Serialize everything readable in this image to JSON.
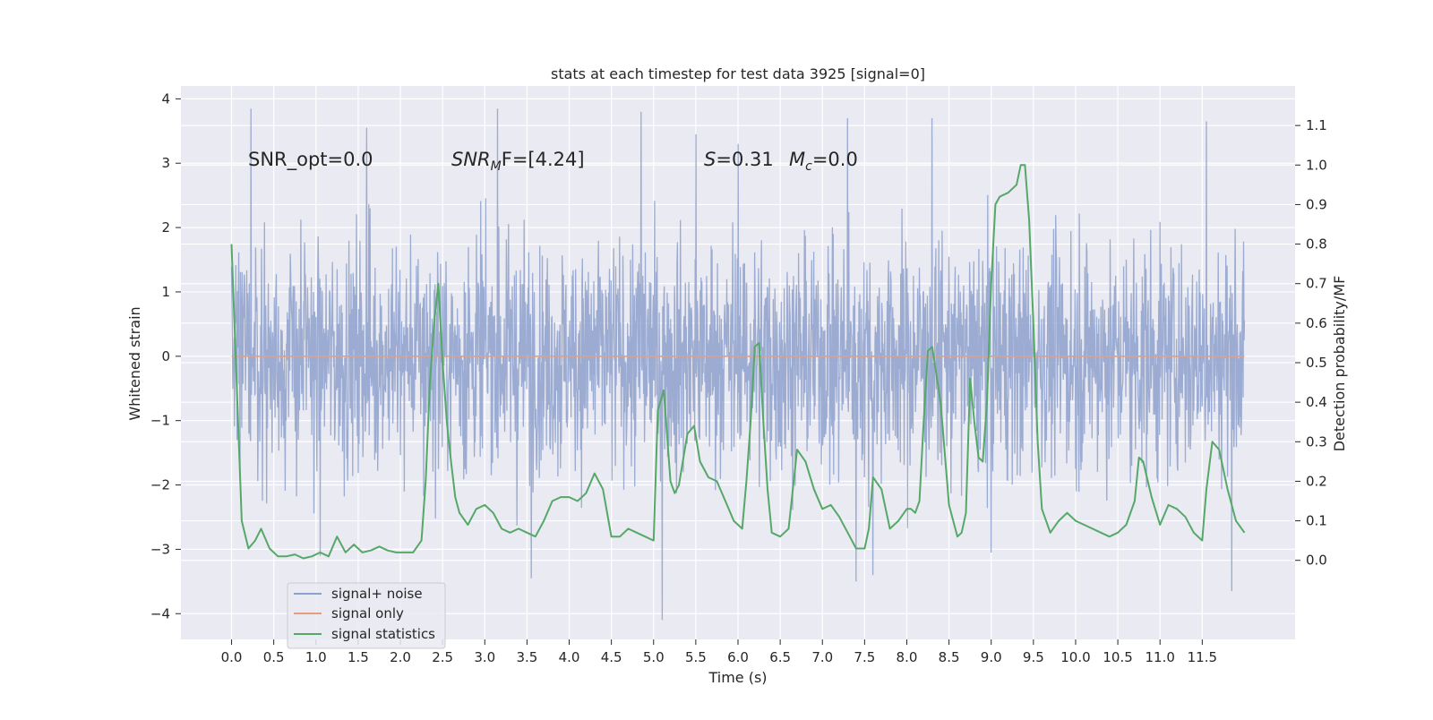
{
  "chart_data": {
    "type": "line",
    "title": "stats at each timestep for test data 3925 [signal=0]",
    "xlabel": "Time (s)",
    "ylabel": "Whitened strain",
    "y2label": "Detection probability/MF",
    "xlim": [
      -0.6,
      12.6
    ],
    "ylim": [
      -4.4,
      4.2
    ],
    "y2lim": [
      -0.2,
      1.2
    ],
    "grid": true,
    "legend_position": "lower-left",
    "x_ticks": [
      "0.0",
      "0.5",
      "1.0",
      "1.5",
      "2.0",
      "2.5",
      "3.0",
      "3.5",
      "4.0",
      "4.5",
      "5.0",
      "5.5",
      "6.0",
      "6.5",
      "7.0",
      "7.5",
      "8.0",
      "8.5",
      "9.0",
      "9.5",
      "10.0",
      "10.5",
      "11.0",
      "11.5"
    ],
    "y_ticks": [
      "4",
      "3",
      "2",
      "1",
      "0",
      "−1",
      "−2",
      "−3",
      "−4"
    ],
    "y2_ticks": [
      "1.1",
      "1.0",
      "0.9",
      "0.8",
      "0.7",
      "0.6",
      "0.5",
      "0.4",
      "0.3",
      "0.2",
      "0.1",
      "0.0"
    ],
    "annotations": {
      "snr_opt": "SNR_opt=0.0",
      "snr_mf_base": "SNR",
      "snr_mf_sub": "M",
      "snr_mf_rest": "F=[4.24]",
      "s_stat_base": "S",
      "s_stat_rest": "=0.31",
      "mc_base": "M",
      "mc_sub": "c",
      "mc_rest": "=0.0"
    },
    "series": [
      {
        "name": "signal+ noise",
        "color": "#8da0cb",
        "kind": "noise",
        "x_range": [
          0,
          12
        ],
        "approx_envelope": [
          -2.5,
          2.5
        ],
        "notable_peaks": [
          [
            0.23,
            3.85
          ],
          [
            1.05,
            -3.1
          ],
          [
            1.6,
            3.55
          ],
          [
            3.15,
            3.85
          ],
          [
            3.55,
            -3.45
          ],
          [
            4.85,
            3.8
          ],
          [
            5.1,
            -4.1
          ],
          [
            5.5,
            3.45
          ],
          [
            6.0,
            3.3
          ],
          [
            7.3,
            3.7
          ],
          [
            7.4,
            -3.5
          ],
          [
            7.6,
            -3.4
          ],
          [
            8.3,
            3.7
          ],
          [
            9.0,
            -3.05
          ],
          [
            11.55,
            3.65
          ],
          [
            11.85,
            -3.65
          ]
        ]
      },
      {
        "name": "signal only",
        "color": "#e89e7e",
        "axis": "left",
        "x": [
          0,
          12
        ],
        "y": [
          0,
          0
        ]
      },
      {
        "name": "signal statistics",
        "color": "#55a868",
        "axis": "right",
        "x": [
          0.0,
          0.12,
          0.2,
          0.28,
          0.35,
          0.45,
          0.55,
          0.65,
          0.75,
          0.85,
          0.95,
          1.05,
          1.15,
          1.25,
          1.35,
          1.45,
          1.55,
          1.65,
          1.75,
          1.85,
          1.95,
          2.05,
          2.15,
          2.25,
          2.3,
          2.35,
          2.4,
          2.45,
          2.5,
          2.55,
          2.6,
          2.65,
          2.7,
          2.8,
          2.9,
          3.0,
          3.1,
          3.2,
          3.3,
          3.4,
          3.5,
          3.6,
          3.7,
          3.8,
          3.9,
          4.0,
          4.1,
          4.2,
          4.3,
          4.4,
          4.5,
          4.6,
          4.7,
          4.8,
          4.9,
          5.0,
          5.05,
          5.12,
          5.2,
          5.25,
          5.3,
          5.4,
          5.48,
          5.55,
          5.65,
          5.75,
          5.85,
          5.95,
          6.05,
          6.1,
          6.15,
          6.2,
          6.25,
          6.3,
          6.35,
          6.4,
          6.5,
          6.6,
          6.7,
          6.8,
          6.9,
          7.0,
          7.1,
          7.2,
          7.3,
          7.4,
          7.5,
          7.55,
          7.6,
          7.7,
          7.8,
          7.9,
          8.0,
          8.05,
          8.1,
          8.15,
          8.2,
          8.25,
          8.3,
          8.4,
          8.5,
          8.6,
          8.65,
          8.7,
          8.75,
          8.8,
          8.85,
          8.9,
          8.95,
          9.0,
          9.05,
          9.1,
          9.2,
          9.3,
          9.35,
          9.4,
          9.45,
          9.5,
          9.55,
          9.6,
          9.7,
          9.8,
          9.9,
          10.0,
          10.1,
          10.2,
          10.3,
          10.4,
          10.5,
          10.6,
          10.7,
          10.75,
          10.8,
          10.9,
          11.0,
          11.1,
          11.2,
          11.3,
          11.4,
          11.5,
          11.55,
          11.62,
          11.7,
          11.8,
          11.9,
          12.0
        ],
        "y": [
          0.8,
          0.1,
          0.03,
          0.05,
          0.08,
          0.03,
          0.01,
          0.01,
          0.015,
          0.005,
          0.01,
          0.02,
          0.01,
          0.06,
          0.02,
          0.04,
          0.02,
          0.025,
          0.035,
          0.025,
          0.02,
          0.02,
          0.02,
          0.05,
          0.2,
          0.45,
          0.6,
          0.7,
          0.5,
          0.35,
          0.25,
          0.16,
          0.12,
          0.09,
          0.13,
          0.14,
          0.12,
          0.08,
          0.07,
          0.08,
          0.07,
          0.06,
          0.1,
          0.15,
          0.16,
          0.16,
          0.15,
          0.17,
          0.22,
          0.18,
          0.06,
          0.06,
          0.08,
          0.07,
          0.06,
          0.05,
          0.38,
          0.43,
          0.2,
          0.17,
          0.19,
          0.32,
          0.34,
          0.25,
          0.21,
          0.2,
          0.15,
          0.1,
          0.08,
          0.2,
          0.35,
          0.54,
          0.55,
          0.35,
          0.18,
          0.07,
          0.06,
          0.08,
          0.28,
          0.25,
          0.18,
          0.13,
          0.14,
          0.11,
          0.07,
          0.03,
          0.03,
          0.08,
          0.21,
          0.18,
          0.08,
          0.1,
          0.13,
          0.13,
          0.12,
          0.15,
          0.35,
          0.53,
          0.54,
          0.4,
          0.14,
          0.06,
          0.07,
          0.12,
          0.46,
          0.35,
          0.26,
          0.25,
          0.4,
          0.7,
          0.9,
          0.92,
          0.93,
          0.95,
          1.0,
          1.0,
          0.86,
          0.6,
          0.3,
          0.13,
          0.07,
          0.1,
          0.12,
          0.1,
          0.09,
          0.08,
          0.07,
          0.06,
          0.07,
          0.09,
          0.15,
          0.26,
          0.25,
          0.16,
          0.09,
          0.14,
          0.13,
          0.11,
          0.07,
          0.05,
          0.18,
          0.3,
          0.28,
          0.18,
          0.1,
          0.07
        ]
      }
    ]
  }
}
